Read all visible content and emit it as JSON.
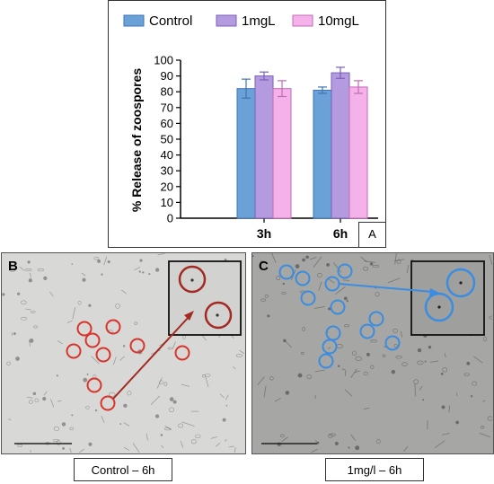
{
  "chart_data": {
    "type": "bar",
    "categories": [
      "3h",
      "6h"
    ],
    "series": [
      {
        "name": "Control",
        "values": [
          82,
          81
        ],
        "errors": [
          6,
          2
        ],
        "color": "#6aa2d8",
        "edge": "#3f73b5"
      },
      {
        "name": "1mgL",
        "values": [
          90,
          92
        ],
        "errors": [
          2.5,
          3.5
        ],
        "color": "#b49be0",
        "edge": "#7b5fb8"
      },
      {
        "name": "10mgL",
        "values": [
          82,
          83
        ],
        "errors": [
          5,
          4
        ],
        "color": "#f5b2ea",
        "edge": "#c26bb4"
      }
    ],
    "ylabel": "% Release of zoospores",
    "ylim": [
      0,
      100
    ],
    "yticks": [
      0,
      10,
      20,
      30,
      40,
      50,
      60,
      70,
      80,
      90,
      100
    ],
    "grid": false,
    "legend_position": "top"
  },
  "panel_a_label": "A",
  "panel_b": {
    "label": "B",
    "caption": "Control – 6h",
    "marker_color": "#d9342b",
    "background": "#d8d8d6"
  },
  "panel_c": {
    "label": "C",
    "caption": "1mg/l – 6h",
    "marker_color": "#3a8de0",
    "background": "#a6a6a4"
  }
}
